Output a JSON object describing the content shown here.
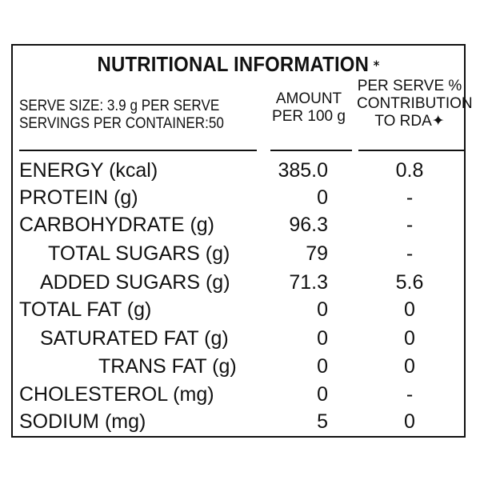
{
  "title": "NUTRITIONAL INFORMATION",
  "title_mark": "⁎",
  "header": {
    "serve_size": "SERVE SIZE: 3.9 g PER SERVE",
    "servings": "SERVINGS PER CONTAINER:50",
    "amount_line1": "AMOUNT",
    "amount_line2": "PER 100 g",
    "rda_line1": "PER SERVE %",
    "rda_line2": "CONTRIBUTION",
    "rda_line3": "TO RDA✦"
  },
  "rows": [
    {
      "name": "ENERGY (kcal)",
      "amount": "385.0",
      "rda": "0.8"
    },
    {
      "name": "PROTEIN (g)",
      "amount": "0",
      "rda": "-"
    },
    {
      "name": "CARBOHYDRATE (g)",
      "amount": "96.3",
      "rda": "-"
    },
    {
      "name": "TOTAL SUGARS (g)",
      "amount": "79",
      "rda": "-"
    },
    {
      "name": "ADDED SUGARS (g)",
      "amount": "71.3",
      "rda": "5.6"
    },
    {
      "name": "TOTAL FAT (g)",
      "amount": "0",
      "rda": "0"
    },
    {
      "name": "SATURATED FAT (g)",
      "amount": "0",
      "rda": "0"
    },
    {
      "name": "TRANS FAT (g)",
      "amount": "0",
      "rda": "0"
    },
    {
      "name": "CHOLESTEROL (mg)",
      "amount": "0",
      "rda": "-"
    },
    {
      "name": "SODIUM (mg)",
      "amount": "5",
      "rda": "0"
    }
  ]
}
